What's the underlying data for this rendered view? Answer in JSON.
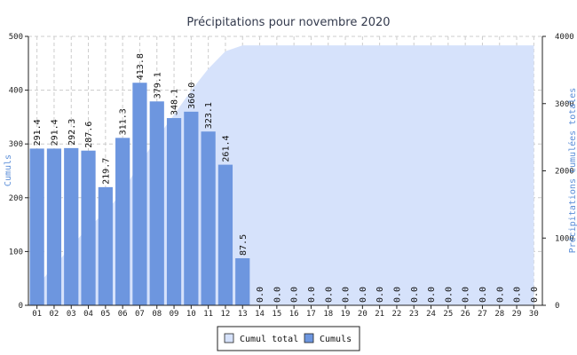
{
  "chart_data": {
    "type": "bar",
    "title": "Précipitations pour novembre 2020",
    "categories": [
      "01",
      "02",
      "03",
      "04",
      "05",
      "06",
      "07",
      "08",
      "09",
      "10",
      "11",
      "12",
      "13",
      "14",
      "15",
      "16",
      "17",
      "18",
      "19",
      "20",
      "21",
      "22",
      "23",
      "24",
      "25",
      "26",
      "27",
      "28",
      "29",
      "30"
    ],
    "series": [
      {
        "name": "Cumul total",
        "type": "area",
        "axis": "right",
        "color": "#d6e2fb",
        "values": [
          291.4,
          582.8,
          875.1,
          1162.7,
          1382.4,
          1693.7,
          2107.5,
          2486.6,
          2834.7,
          3194.7,
          3517.8,
          3779.2,
          3866.7,
          3866.7,
          3866.7,
          3866.7,
          3866.7,
          3866.7,
          3866.7,
          3866.7,
          3866.7,
          3866.7,
          3866.7,
          3866.7,
          3866.7,
          3866.7,
          3866.7,
          3866.7,
          3866.7,
          3866.7
        ]
      },
      {
        "name": "Cumuls",
        "type": "bar",
        "axis": "left",
        "color": "#6d96df",
        "values": [
          291.4,
          291.4,
          292.3,
          287.6,
          219.7,
          311.3,
          413.8,
          379.1,
          348.1,
          360.0,
          323.1,
          261.4,
          87.5,
          0.0,
          0.0,
          0.0,
          0.0,
          0.0,
          0.0,
          0.0,
          0.0,
          0.0,
          0.0,
          0.0,
          0.0,
          0.0,
          0.0,
          0.0,
          0.0,
          0.0
        ],
        "labels": [
          "291.4",
          "291.4",
          "292.3",
          "287.6",
          "219.7",
          "311.3",
          "413.8",
          "379.1",
          "348.1",
          "360.0",
          "323.1",
          "261.4",
          "87.5",
          "0.0",
          "0.0",
          "0.0",
          "0.0",
          "0.0",
          "0.0",
          "0.0",
          "0.0",
          "0.0",
          "0.0",
          "0.0",
          "0.0",
          "0.0",
          "0.0",
          "0.0",
          "0.0",
          "0.0"
        ]
      }
    ],
    "ylabel": "Cumuls",
    "y2label": "Précipitations cumulées totales",
    "ylim": [
      0,
      500
    ],
    "y2lim": [
      0,
      4000
    ],
    "yticks": [
      "0",
      "100",
      "200",
      "300",
      "400",
      "500"
    ],
    "y2ticks": [
      "0",
      "1000",
      "2000",
      "3000",
      "4000"
    ],
    "grid": true,
    "legend": {
      "position": "bottom-center",
      "entries": [
        "Cumul total",
        "Cumuls"
      ]
    }
  }
}
